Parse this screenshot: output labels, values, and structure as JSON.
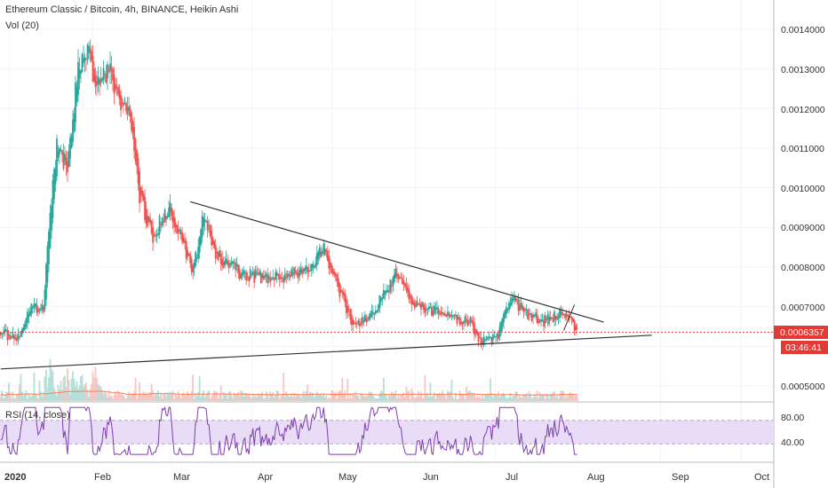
{
  "header": {
    "symbol_line": "Ethereum Classic / Bitcoin, 4h, BINANCE, Heikin Ashi",
    "volume_study": "Vol (20)"
  },
  "rsi_panel": {
    "label": "RSI (14, close)",
    "levels": [
      "80.00",
      "40.00"
    ]
  },
  "price_axis": {
    "ticks": [
      "0.0014000",
      "0.0013000",
      "0.0012000",
      "0.0011000",
      "0.0010000",
      "0.0009000",
      "0.0008000",
      "0.0007000",
      "0.0005000"
    ]
  },
  "last_price": {
    "value": "0.0006357",
    "countdown": "03:46:41"
  },
  "time_axis": {
    "ticks": [
      "2020",
      "Feb",
      "Mar",
      "Apr",
      "May",
      "Jun",
      "Jul",
      "Aug",
      "Sep",
      "Oct"
    ]
  },
  "colors": {
    "up": "#26a69a",
    "down": "#ef5350",
    "trendline": "#333333",
    "volume_ma": "#ff7f50",
    "rsi_line": "#7e3fb0",
    "rsi_band": "#e9dcf6",
    "last_price": "#e53935"
  },
  "chart_data": {
    "type": "candlestick",
    "title": "Ethereum Classic / Bitcoin, 4h, BINANCE, Heikin Ashi",
    "x_range": [
      "2020-01-01",
      "2020-10-01"
    ],
    "ylim": [
      0.00046,
      0.00145
    ],
    "price_anchors": [
      {
        "date": "2020-01-01",
        "price": 0.000635
      },
      {
        "date": "2020-01-07",
        "price": 0.00062
      },
      {
        "date": "2020-01-13",
        "price": 0.0007
      },
      {
        "date": "2020-01-17",
        "price": 0.0007
      },
      {
        "date": "2020-01-19",
        "price": 0.0009
      },
      {
        "date": "2020-01-22",
        "price": 0.0011
      },
      {
        "date": "2020-01-26",
        "price": 0.00105
      },
      {
        "date": "2020-01-30",
        "price": 0.0013
      },
      {
        "date": "2020-02-02",
        "price": 0.00135
      },
      {
        "date": "2020-02-06",
        "price": 0.00126
      },
      {
        "date": "2020-02-11",
        "price": 0.0013
      },
      {
        "date": "2020-02-14",
        "price": 0.00122
      },
      {
        "date": "2020-02-18",
        "price": 0.0012
      },
      {
        "date": "2020-02-22",
        "price": 0.00098
      },
      {
        "date": "2020-02-27",
        "price": 0.00088
      },
      {
        "date": "2020-03-04",
        "price": 0.00095
      },
      {
        "date": "2020-03-08",
        "price": 0.00088
      },
      {
        "date": "2020-03-13",
        "price": 0.00079
      },
      {
        "date": "2020-03-17",
        "price": 0.00093
      },
      {
        "date": "2020-03-22",
        "price": 0.00083
      },
      {
        "date": "2020-04-01",
        "price": 0.00078
      },
      {
        "date": "2020-04-15",
        "price": 0.00077
      },
      {
        "date": "2020-04-27",
        "price": 0.0008
      },
      {
        "date": "2020-05-01",
        "price": 0.00085
      },
      {
        "date": "2020-05-07",
        "price": 0.00074
      },
      {
        "date": "2020-05-12",
        "price": 0.00065
      },
      {
        "date": "2020-05-20",
        "price": 0.00069
      },
      {
        "date": "2020-05-28",
        "price": 0.00078
      },
      {
        "date": "2020-06-05",
        "price": 0.0007
      },
      {
        "date": "2020-06-15",
        "price": 0.00068
      },
      {
        "date": "2020-06-25",
        "price": 0.00066
      },
      {
        "date": "2020-06-28",
        "price": 0.00061
      },
      {
        "date": "2020-07-05",
        "price": 0.00062
      },
      {
        "date": "2020-07-10",
        "price": 0.00072
      },
      {
        "date": "2020-07-15",
        "price": 0.00069
      },
      {
        "date": "2020-07-22",
        "price": 0.00066
      },
      {
        "date": "2020-07-30",
        "price": 0.00069
      },
      {
        "date": "2020-08-04",
        "price": 0.000636
      }
    ],
    "upper_trendline": {
      "from": {
        "date": "2020-03-12",
        "price": 0.000965
      },
      "to": {
        "date": "2020-08-14",
        "price": 0.000661
      }
    },
    "lower_trendline": {
      "from": {
        "date": "2020-01-01",
        "price": 0.000543
      },
      "to": {
        "date": "2020-09-01",
        "price": 0.000628
      }
    },
    "last_price": 0.0006357,
    "volume_ma_level": "low",
    "rsi": {
      "ylim": [
        0,
        100
      ],
      "band": [
        30,
        70
      ],
      "levels": [
        80,
        40
      ]
    }
  }
}
